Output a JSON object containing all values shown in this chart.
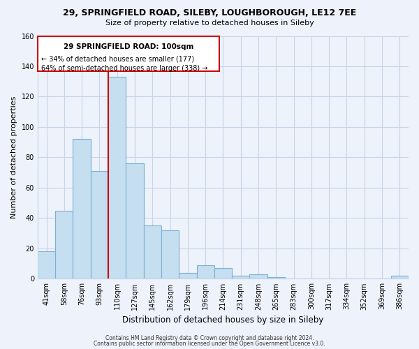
{
  "title": "29, SPRINGFIELD ROAD, SILEBY, LOUGHBOROUGH, LE12 7EE",
  "subtitle": "Size of property relative to detached houses in Sileby",
  "xlabel": "Distribution of detached houses by size in Sileby",
  "ylabel": "Number of detached properties",
  "bar_color": "#c5dff0",
  "bar_edge_color": "#7bafd4",
  "categories": [
    "41sqm",
    "58sqm",
    "76sqm",
    "93sqm",
    "110sqm",
    "127sqm",
    "145sqm",
    "162sqm",
    "179sqm",
    "196sqm",
    "214sqm",
    "231sqm",
    "248sqm",
    "265sqm",
    "283sqm",
    "300sqm",
    "317sqm",
    "334sqm",
    "352sqm",
    "369sqm",
    "386sqm"
  ],
  "values": [
    18,
    45,
    92,
    71,
    133,
    76,
    35,
    32,
    4,
    9,
    7,
    2,
    3,
    1,
    0,
    0,
    0,
    0,
    0,
    0,
    2
  ],
  "highlight_index": 4,
  "annotation_title": "29 SPRINGFIELD ROAD: 100sqm",
  "annotation_line1": "← 34% of detached houses are smaller (177)",
  "annotation_line2": "64% of semi-detached houses are larger (338) →",
  "vline_color": "#cc0000",
  "annotation_box_color": "#cc0000",
  "ylim": [
    0,
    160
  ],
  "footer1": "Contains HM Land Registry data © Crown copyright and database right 2024.",
  "footer2": "Contains public sector information licensed under the Open Government Licence v3.0.",
  "bg_color": "#eef2fb",
  "grid_color": "#c8d4e8"
}
